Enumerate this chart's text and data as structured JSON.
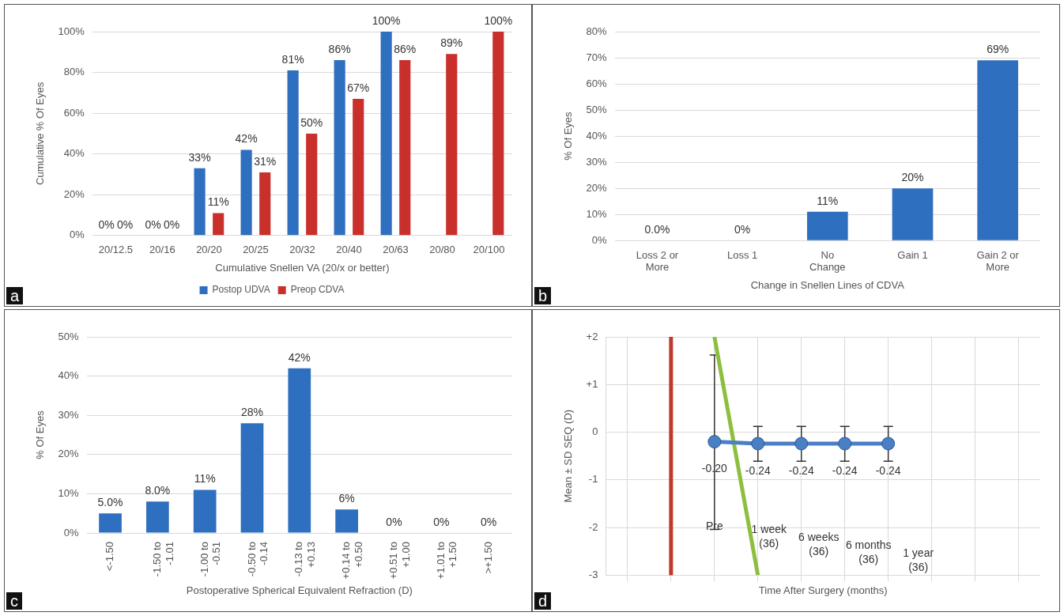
{
  "chart_data": [
    {
      "type": "bar",
      "xlabel": "Cumulative Snellen VA (20/x or better)",
      "ylabel": "Cumulative % Of Eyes",
      "categories": [
        "20/12.5",
        "20/16",
        "20/20",
        "20/25",
        "20/32",
        "20/40",
        "20/63",
        "20/80",
        "20/100"
      ],
      "series": [
        {
          "name": "Postop UDVA",
          "color": "#2f6fbf",
          "values": [
            0,
            0,
            33,
            42,
            81,
            86,
            100,
            null,
            null
          ],
          "value_labels": [
            "0%",
            "0%",
            "33%",
            "42%",
            "81%",
            "86%",
            "100%",
            null,
            null
          ]
        },
        {
          "name": "Preop CDVA",
          "color": "#c9302c",
          "values": [
            0,
            0,
            11,
            31,
            50,
            67,
            86,
            89,
            100
          ],
          "value_labels": [
            "0%",
            "0%",
            "11%",
            "31%",
            "50%",
            "67%",
            "86%",
            "89%",
            "100%"
          ]
        }
      ],
      "ylim": [
        0,
        100
      ],
      "yticks": [
        {
          "value": 0,
          "label": "0%"
        },
        {
          "value": 20,
          "label": "20%"
        },
        {
          "value": 40,
          "label": "40%"
        },
        {
          "value": 60,
          "label": "60%"
        },
        {
          "value": 80,
          "label": "80%"
        },
        {
          "value": 100,
          "label": "100%"
        }
      ],
      "grid": "y",
      "legend": "bottom",
      "annotations": [
        "a"
      ]
    },
    {
      "type": "bar",
      "xlabel": "Change in Snellen Lines of CDVA",
      "ylabel": "% Of Eyes",
      "categories": [
        "Loss 2 or More",
        "Loss 1",
        "No Change",
        "Gain 1",
        "Gain 2 or More"
      ],
      "series": [
        {
          "color": "#2f6fbf",
          "values": [
            0,
            0,
            11,
            20,
            69
          ],
          "value_labels": [
            "0.0%",
            "0%",
            "11%",
            "20%",
            "69%"
          ]
        }
      ],
      "ylim": [
        0,
        80
      ],
      "yticks": [
        {
          "value": 0,
          "label": "0%"
        },
        {
          "value": 10,
          "label": "10%"
        },
        {
          "value": 20,
          "label": "20%"
        },
        {
          "value": 30,
          "label": "30%"
        },
        {
          "value": 40,
          "label": "40%"
        },
        {
          "value": 50,
          "label": "50%"
        },
        {
          "value": 60,
          "label": "60%"
        },
        {
          "value": 70,
          "label": "70%"
        },
        {
          "value": 80,
          "label": "80%"
        }
      ],
      "grid": "y",
      "annotations": [
        "b"
      ]
    },
    {
      "type": "bar",
      "xlabel": "Postoperative Spherical Equivalent Refraction (D)",
      "ylabel": "% Of Eyes",
      "categories": [
        "<-1.50",
        "-1.50 to -1.01",
        "-1.00 to -0.51",
        "-0.50 to -0.14",
        "-0.13 to +0.13",
        "+0.14 to +0.50",
        "+0.51 to +1.00",
        "+1.01 to +1.50",
        ">+1.50"
      ],
      "series": [
        {
          "color": "#2f6fbf",
          "values": [
            5,
            8,
            11,
            28,
            42,
            6,
            0,
            0,
            0
          ],
          "value_labels": [
            "5.0%",
            "8.0%",
            "11%",
            "28%",
            "42%",
            "6%",
            "0%",
            "0%",
            "0%"
          ]
        }
      ],
      "ylim": [
        0,
        50
      ],
      "yticks": [
        {
          "value": 0,
          "label": "0%"
        },
        {
          "value": 10,
          "label": "10%"
        },
        {
          "value": 20,
          "label": "20%"
        },
        {
          "value": 30,
          "label": "30%"
        },
        {
          "value": 40,
          "label": "40%"
        },
        {
          "value": 50,
          "label": "50%"
        }
      ],
      "grid": "y",
      "annotations": [
        "c"
      ]
    },
    {
      "type": "line",
      "xlabel": "Time After Surgery (months)",
      "ylabel": "Mean ± SD SEQ (D)",
      "series": [
        {
          "color": "#4a7fc4",
          "values": [
            null,
            null,
            -0.2,
            -0.24,
            -0.24,
            -0.24,
            -0.24,
            null,
            null,
            null
          ],
          "value_labels": [
            null,
            null,
            "-0.20",
            "-0.24",
            "-0.24",
            "-0.24",
            "-0.24",
            null,
            null,
            null
          ],
          "errors": [
            null,
            null,
            [
              -2.04,
              1.62
            ],
            [
              -0.61,
              0.12
            ],
            [
              -0.61,
              0.12
            ],
            [
              -0.61,
              0.12
            ],
            [
              -0.61,
              0.12
            ],
            null,
            null,
            null
          ]
        },
        {
          "color": "#8dbf3e",
          "values": [
            null,
            null,
            2,
            -3,
            null,
            null,
            null,
            null,
            null,
            null
          ],
          "marker": "none"
        }
      ],
      "categories": [
        null,
        null,
        null,
        null,
        null,
        null,
        null,
        null,
        null,
        null
      ],
      "ylim": [
        -3,
        2
      ],
      "yticks": [
        {
          "value": -3,
          "label": "-3"
        },
        {
          "value": -2,
          "label": "-2"
        },
        {
          "value": -1,
          "label": "-1"
        },
        {
          "value": 0,
          "label": "0"
        },
        {
          "value": 1,
          "label": "+1"
        },
        {
          "value": 2,
          "label": "+2"
        }
      ],
      "grid": true,
      "tick_labels": "y",
      "marker": "circle",
      "annotations": [
        "Pre",
        "1 week (36)",
        "6 weeks (36)",
        "6 months (36)",
        "1 year (36)",
        "d"
      ]
    }
  ]
}
